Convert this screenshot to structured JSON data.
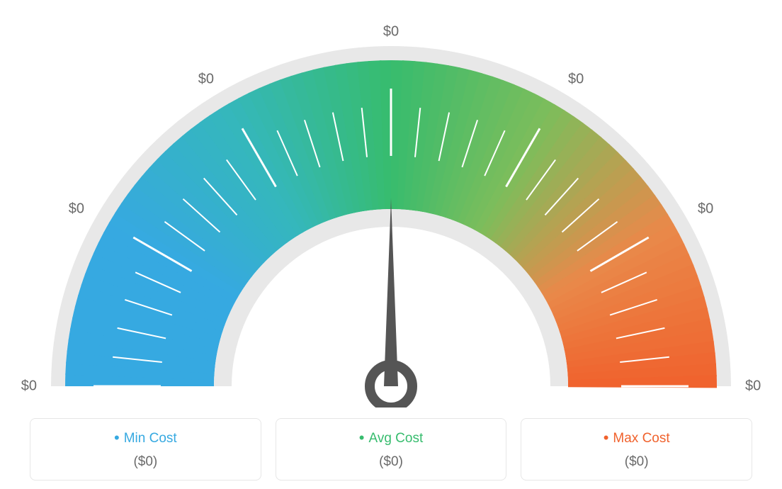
{
  "gauge": {
    "type": "gauge",
    "background_color": "#ffffff",
    "outer_track_color": "#e8e8e8",
    "inner_track_color": "#e8e8e8",
    "needle_color": "#555555",
    "tick_label_color": "#6a6a6a",
    "tick_label_fontsize": 20,
    "color_stops": [
      {
        "angle": 180,
        "color": "#36a9e1"
      },
      {
        "angle": 150,
        "color": "#36a9e1"
      },
      {
        "angle": 120,
        "color": "#35b7bb"
      },
      {
        "angle": 90,
        "color": "#37bc6e"
      },
      {
        "angle": 60,
        "color": "#7dbd5b"
      },
      {
        "angle": 30,
        "color": "#e9894a"
      },
      {
        "angle": 0,
        "color": "#f0622d"
      }
    ],
    "major_ticks": [
      {
        "angle": 180,
        "label": "$0"
      },
      {
        "angle": 150,
        "label": "$0"
      },
      {
        "angle": 120,
        "label": "$0"
      },
      {
        "angle": 90,
        "label": "$0"
      },
      {
        "angle": 60,
        "label": "$0"
      },
      {
        "angle": 30,
        "label": "$0"
      },
      {
        "angle": 0,
        "label": "$0"
      }
    ],
    "minor_tick_count_between": 4,
    "needle_angle_deg": 90,
    "outer_radius": 480,
    "arc_outer_radius": 460,
    "arc_inner_radius": 250,
    "inner_track_inner_radius": 225,
    "tick_inner_radius": 325,
    "tick_outer_radius_major": 420,
    "tick_outer_radius_minor": 395,
    "tick_stroke_color": "#ffffff",
    "tick_stroke_width_major": 3,
    "tick_stroke_width_minor": 2,
    "label_radius": 500
  },
  "legend": {
    "min": {
      "label": "Min Cost",
      "value": "($0)",
      "color": "#36a9e1"
    },
    "avg": {
      "label": "Avg Cost",
      "value": "($0)",
      "color": "#37bc6e"
    },
    "max": {
      "label": "Max Cost",
      "value": "($0)",
      "color": "#f0622d"
    },
    "card_border_color": "#e6e6e6",
    "card_border_radius": 8,
    "label_fontsize": 19,
    "value_color": "#6a6a6a",
    "value_fontsize": 19
  }
}
